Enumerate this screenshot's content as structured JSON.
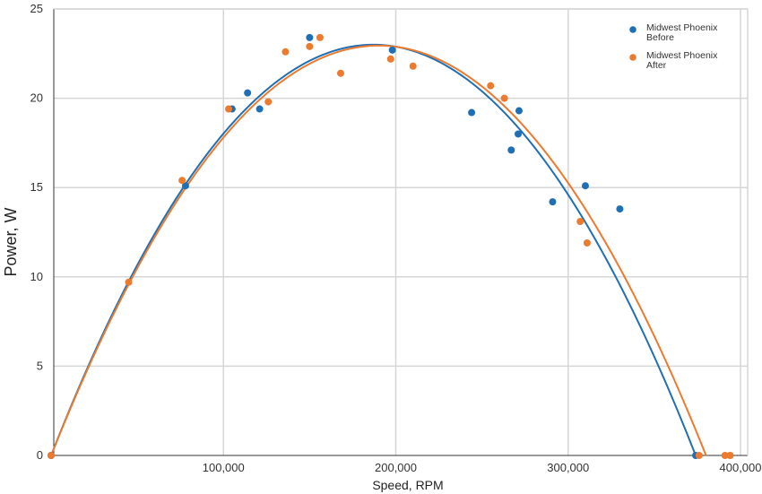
{
  "chart_data": {
    "type": "scatter",
    "xlabel": "Speed, RPM",
    "ylabel": "Power, W",
    "xlim": [
      0,
      400000
    ],
    "ylim": [
      0,
      25
    ],
    "x_ticks": [
      100000,
      200000,
      300000,
      400000
    ],
    "x_tick_labels": [
      "100,000",
      "200,000",
      "300,000",
      "400,000"
    ],
    "y_ticks": [
      0,
      5,
      10,
      15,
      20,
      25
    ],
    "y_tick_labels": [
      "0",
      "5",
      "10",
      "15",
      "20",
      "25"
    ],
    "grid": true,
    "legend_position": "top-right",
    "series": [
      {
        "name": "Midwest Phoenix Before",
        "legend_lines": [
          "Midwest Phoenix",
          "Before"
        ],
        "color": "#1f6fb5",
        "points": [
          [
            0,
            0
          ],
          [
            78000,
            15.1
          ],
          [
            105000,
            19.4
          ],
          [
            114000,
            20.3
          ],
          [
            121000,
            19.4
          ],
          [
            150000,
            23.4
          ],
          [
            198000,
            22.7
          ],
          [
            244000,
            19.2
          ],
          [
            267000,
            17.1
          ],
          [
            271000,
            18.0
          ],
          [
            271500,
            19.3
          ],
          [
            291000,
            14.2
          ],
          [
            310000,
            15.1
          ],
          [
            330000,
            13.8
          ],
          [
            374000,
            0
          ]
        ],
        "fit_vertex": [
          187000,
          23.0
        ],
        "fit_root": 374000
      },
      {
        "name": "Midwest Phoenix After",
        "legend_lines": [
          "Midwest Phoenix",
          "After"
        ],
        "color": "#ec7a2f",
        "points": [
          [
            0,
            0
          ],
          [
            45000,
            9.7
          ],
          [
            76000,
            15.4
          ],
          [
            103000,
            19.4
          ],
          [
            126000,
            19.8
          ],
          [
            136000,
            22.6
          ],
          [
            150000,
            22.9
          ],
          [
            156000,
            23.4
          ],
          [
            168000,
            21.4
          ],
          [
            197000,
            22.2
          ],
          [
            210000,
            21.8
          ],
          [
            255000,
            20.7
          ],
          [
            263000,
            20.0
          ],
          [
            307000,
            13.1
          ],
          [
            311000,
            11.9
          ],
          [
            376000,
            0
          ],
          [
            391000,
            0
          ],
          [
            394000,
            0
          ]
        ],
        "fit_vertex": [
          190000,
          22.95
        ],
        "fit_root": 380000
      }
    ]
  }
}
